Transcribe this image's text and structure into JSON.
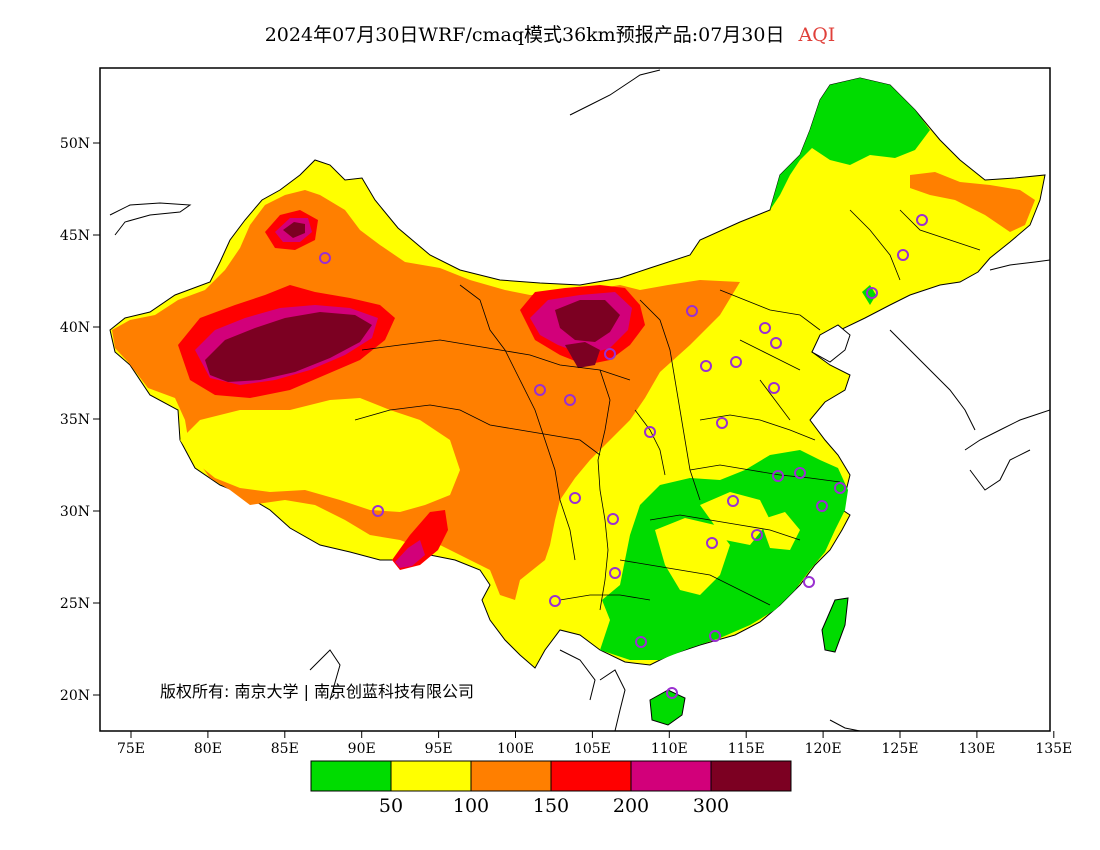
{
  "title": {
    "main": "2024年07月30日WRF/cmaq模式36km预报产品:07月30日",
    "variable": "AQI",
    "variable_color": "#e0403a"
  },
  "axes": {
    "lon_ticks": [
      "75E",
      "80E",
      "85E",
      "90E",
      "95E",
      "100E",
      "105E",
      "110E",
      "115E",
      "120E",
      "125E",
      "130E",
      "135E"
    ],
    "lat_ticks": [
      "50N",
      "45N",
      "40N",
      "35N",
      "30N",
      "25N",
      "20N"
    ]
  },
  "copyright": "版权所有: 南京大学 | 南京创蓝科技有限公司",
  "legend": {
    "colors": [
      "#00dc00",
      "#ffff00",
      "#ff7f00",
      "#ff0000",
      "#d2007a",
      "#7c0022"
    ],
    "labels": [
      "50",
      "100",
      "150",
      "200",
      "300"
    ]
  },
  "colors": {
    "good": "#00dc00",
    "moderate": "#ffff00",
    "unhealthy_sensitive": "#ff7f00",
    "unhealthy": "#ff0000",
    "very_unhealthy": "#d2007a",
    "hazardous": "#7c0022",
    "station_marker": "#9a30d0"
  }
}
